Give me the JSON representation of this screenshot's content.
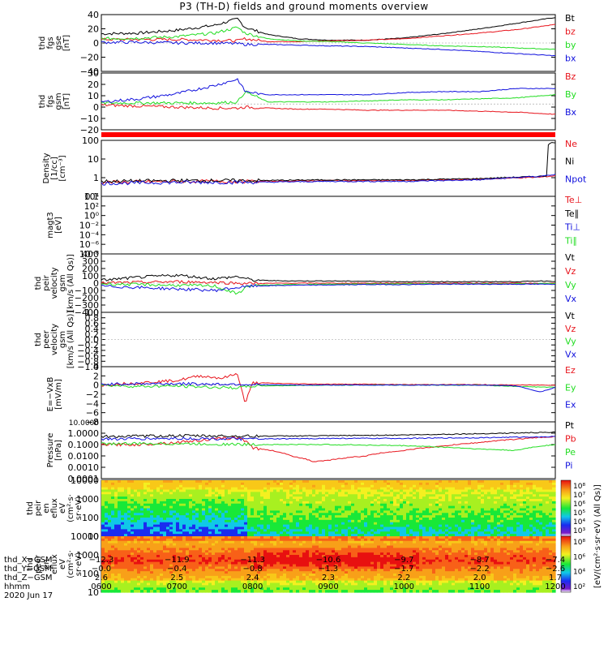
{
  "title": "P3 (TH-D) fields and ground moments overview",
  "colors": {
    "black": "#000000",
    "red": "#e8141c",
    "green": "#22dd22",
    "blue": "#1010dd"
  },
  "chart_data": [
    {
      "type": "line",
      "ylabel": [
        "thd",
        "fgs",
        "gse",
        "[nT]"
      ],
      "ylim": [
        -40,
        40
      ],
      "yticks": [
        "40",
        "20",
        "0",
        "−20",
        "−40"
      ],
      "legend": [
        {
          "label": "Bt",
          "color": "#000000"
        },
        {
          "label": "bz",
          "color": "#e8141c"
        },
        {
          "label": "by",
          "color": "#22dd22"
        },
        {
          "label": "bx",
          "color": "#1010dd"
        }
      ],
      "series": [
        {
          "name": "Bt",
          "color": "#000000",
          "x": [
            6.0,
            6.5,
            7.0,
            7.5,
            7.8,
            7.9,
            8.2,
            8.6,
            9.0,
            9.5,
            10.0,
            10.5,
            11.0,
            11.5,
            12.0
          ],
          "y": [
            13,
            14,
            18,
            25,
            34,
            22,
            12,
            6,
            4,
            4,
            7,
            13,
            20,
            28,
            36
          ]
        },
        {
          "name": "bz",
          "color": "#e8141c",
          "x": [
            6.0,
            6.5,
            7.0,
            7.5,
            7.8,
            7.9,
            8.2,
            8.6,
            9.0,
            9.5,
            10.0,
            10.5,
            11.0,
            11.5,
            12.0
          ],
          "y": [
            5,
            5,
            5,
            4,
            3,
            6,
            2,
            2,
            3,
            4,
            6,
            10,
            14,
            19,
            26
          ]
        },
        {
          "name": "by",
          "color": "#22dd22",
          "x": [
            6.0,
            6.5,
            7.0,
            7.5,
            7.8,
            7.9,
            8.2,
            8.6,
            9.0,
            9.5,
            10.0,
            10.5,
            11.0,
            11.5,
            12.0
          ],
          "y": [
            6,
            7,
            9,
            14,
            22,
            14,
            6,
            3,
            2,
            0,
            -2,
            -4,
            -5,
            -7,
            -9
          ]
        },
        {
          "name": "bx",
          "color": "#1010dd",
          "x": [
            6.0,
            6.5,
            7.0,
            7.5,
            7.8,
            7.9,
            8.2,
            8.6,
            9.0,
            9.5,
            10.0,
            10.5,
            11.0,
            11.5,
            12.0
          ],
          "y": [
            1,
            1,
            0,
            0,
            -1,
            -2,
            -2,
            -3,
            -4,
            -5,
            -7,
            -9,
            -12,
            -15,
            -18
          ]
        }
      ]
    },
    {
      "type": "line",
      "ylabel": [
        "thd",
        "fgs",
        "gsm",
        "[nT]"
      ],
      "ylim": [
        -25,
        30
      ],
      "yticks": [
        "30",
        "20",
        "10",
        "0",
        "−10",
        "−20"
      ],
      "legend": [
        {
          "label": "Bz",
          "color": "#e8141c"
        },
        {
          "label": "By",
          "color": "#22dd22"
        },
        {
          "label": "Bx",
          "color": "#1010dd"
        }
      ],
      "series": [
        {
          "name": "Bz",
          "color": "#e8141c",
          "x": [
            6.0,
            6.5,
            7.0,
            7.5,
            7.8,
            7.9,
            8.2,
            8.6,
            9.0,
            9.5,
            10.0,
            10.5,
            11.0,
            11.5,
            12.0
          ],
          "y": [
            -1,
            -2,
            -3,
            -4,
            -4,
            -3,
            -4,
            -5,
            -5,
            -6,
            -6,
            -6,
            -7,
            -8,
            -10
          ]
        },
        {
          "name": "By",
          "color": "#22dd22",
          "x": [
            6.0,
            6.5,
            7.0,
            7.5,
            7.8,
            7.9,
            8.2,
            8.6,
            9.0,
            9.5,
            10.0,
            10.5,
            11.0,
            11.5,
            12.0
          ],
          "y": [
            1,
            1,
            1,
            1,
            2,
            12,
            2,
            2,
            2,
            3,
            4,
            4,
            5,
            6,
            9
          ]
        },
        {
          "name": "Bx",
          "color": "#1010dd",
          "x": [
            6.0,
            6.5,
            7.0,
            7.5,
            7.8,
            7.9,
            8.2,
            8.6,
            9.0,
            9.5,
            10.0,
            10.5,
            11.0,
            11.5,
            12.0
          ],
          "y": [
            2,
            5,
            10,
            18,
            24,
            12,
            9,
            9,
            9,
            9,
            11,
            12,
            12,
            15,
            15
          ]
        }
      ]
    },
    {
      "type": "line",
      "ylabel": [
        "Density",
        "[1/cc]",
        "[cm⁻³]"
      ],
      "ylog": true,
      "ylim": [
        0.03,
        300
      ],
      "yticks": [
        "100",
        "10",
        "1",
        "0.1"
      ],
      "legend": [
        {
          "label": "Ne",
          "color": "#e8141c"
        },
        {
          "label": "Ni",
          "color": "#000000"
        },
        {
          "label": "Npot",
          "color": "#1010dd"
        }
      ],
      "series": [
        {
          "name": "Ne",
          "color": "#e8141c",
          "x": [
            6.0,
            7.0,
            8.0,
            9.0,
            10.0,
            11.0,
            11.8,
            11.9,
            12.0
          ],
          "y": [
            0.3,
            0.35,
            0.35,
            0.4,
            0.4,
            0.5,
            0.7,
            0.8,
            0.9
          ]
        },
        {
          "name": "Ni",
          "color": "#000000",
          "x": [
            6.0,
            7.0,
            8.0,
            9.0,
            10.0,
            11.0,
            11.8,
            11.9,
            11.91,
            12.0
          ],
          "y": [
            0.35,
            0.4,
            0.4,
            0.45,
            0.45,
            0.55,
            0.8,
            0.9,
            200,
            200
          ]
        },
        {
          "name": "Npot",
          "color": "#1010dd",
          "x": [
            6.0,
            7.0,
            8.0,
            9.0,
            10.0,
            11.0,
            11.8,
            12.0
          ],
          "y": [
            0.25,
            0.3,
            0.3,
            0.35,
            0.35,
            0.45,
            0.8,
            1.1
          ]
        }
      ]
    },
    {
      "type": "line",
      "ylabel": [
        "magt3",
        "[eV]"
      ],
      "ylog": true,
      "yticks": [
        "10⁴",
        "10²",
        "10⁰",
        "10⁻²",
        "10⁻⁴",
        "10⁻⁶",
        "10⁻⁸"
      ],
      "legend": [
        {
          "label": "Te⊥",
          "color": "#e8141c"
        },
        {
          "label": "Te∥",
          "color": "#000000"
        },
        {
          "label": "Ti⊥",
          "color": "#1010dd"
        },
        {
          "label": "Ti∥",
          "color": "#22dd22"
        }
      ],
      "series": []
    },
    {
      "type": "line",
      "ylabel": [
        "thd",
        "peir",
        "velocity",
        "gsm",
        "[km/s (All Qs)]"
      ],
      "ylim": [
        -400,
        400
      ],
      "yticks": [
        "400",
        "300",
        "200",
        "100",
        "0",
        "−100",
        "−200",
        "−300",
        "−400"
      ],
      "legend": [
        {
          "label": "Vt",
          "color": "#000000"
        },
        {
          "label": "Vz",
          "color": "#e8141c"
        },
        {
          "label": "Vy",
          "color": "#22dd22"
        },
        {
          "label": "Vx",
          "color": "#1010dd"
        }
      ],
      "series": [
        {
          "name": "Vt",
          "color": "#000000",
          "x": [
            6.0,
            6.5,
            7.0,
            7.5,
            7.8,
            8.0,
            8.5,
            9.0,
            9.5,
            10.0,
            10.5,
            11.0,
            11.5,
            11.8,
            12.0
          ],
          "y": [
            40,
            80,
            110,
            60,
            90,
            40,
            30,
            30,
            25,
            20,
            20,
            20,
            20,
            30,
            25
          ]
        },
        {
          "name": "Vz",
          "color": "#e8141c",
          "x": [
            6.0,
            6.5,
            7.0,
            7.5,
            7.8,
            8.0,
            8.5,
            9.0,
            9.5,
            10.0,
            10.5,
            11.0,
            11.5,
            11.8,
            12.0
          ],
          "y": [
            0,
            10,
            20,
            10,
            0,
            -5,
            0,
            0,
            0,
            0,
            0,
            0,
            0,
            -5,
            0
          ]
        },
        {
          "name": "Vy",
          "color": "#22dd22",
          "x": [
            6.0,
            6.5,
            7.0,
            7.5,
            7.8,
            7.9,
            8.0,
            8.5,
            9.0,
            9.5,
            10.0,
            10.5,
            11.0,
            11.5,
            12.0
          ],
          "y": [
            -10,
            -20,
            -30,
            -40,
            -150,
            -60,
            -30,
            -20,
            -15,
            -10,
            -10,
            -10,
            -10,
            -10,
            -5
          ]
        },
        {
          "name": "Vx",
          "color": "#1010dd",
          "x": [
            6.0,
            6.5,
            7.0,
            7.5,
            7.8,
            8.0,
            8.5,
            9.0,
            9.5,
            10.0,
            10.5,
            11.0,
            11.5,
            12.0
          ],
          "y": [
            -40,
            -60,
            -80,
            -100,
            -60,
            -40,
            -30,
            -25,
            -20,
            -20,
            -15,
            -15,
            -15,
            -15
          ]
        }
      ]
    },
    {
      "type": "line",
      "ylabel": [
        "thd",
        "peer",
        "velocity",
        "gsm",
        "[km/s (All Qs)]"
      ],
      "ylim": [
        -1,
        1
      ],
      "yticks": [
        "1.0",
        "0.8",
        "0.6",
        "0.4",
        "0.2",
        "0.0",
        "−0.2",
        "−0.4",
        "−0.6",
        "−0.8",
        "−1.0"
      ],
      "legend": [
        {
          "label": "Vt",
          "color": "#000000"
        },
        {
          "label": "Vz",
          "color": "#e8141c"
        },
        {
          "label": "Vy",
          "color": "#22dd22"
        },
        {
          "label": "Vx",
          "color": "#1010dd"
        }
      ],
      "series": []
    },
    {
      "type": "line",
      "ylabel": [
        "E=−VxB",
        "[mV/m]"
      ],
      "ylim": [
        -8,
        4
      ],
      "yticks": [
        "4",
        "2",
        "0",
        "−2",
        "−4",
        "−6",
        "−8"
      ],
      "legend": [
        {
          "label": "Ez",
          "color": "#e8141c"
        },
        {
          "label": "Ey",
          "color": "#22dd22"
        },
        {
          "label": "Ex",
          "color": "#1010dd"
        }
      ],
      "series": [
        {
          "name": "Ez",
          "color": "#e8141c",
          "x": [
            6.0,
            6.5,
            7.0,
            7.3,
            7.6,
            7.8,
            7.9,
            8.0,
            8.5,
            9.0,
            9.5,
            10.0,
            10.5,
            11.0,
            11.5,
            12.0
          ],
          "y": [
            0,
            0.5,
            1,
            2,
            1.5,
            2.5,
            -4,
            0.5,
            0.3,
            0.2,
            0.2,
            0.1,
            0.1,
            0.1,
            0,
            0
          ]
        },
        {
          "name": "Ey",
          "color": "#22dd22",
          "x": [
            6.0,
            6.5,
            7.0,
            7.5,
            7.8,
            8.0,
            8.5,
            9.0,
            9.5,
            10.0,
            10.5,
            11.0,
            11.5,
            12.0
          ],
          "y": [
            0,
            -0.3,
            -0.2,
            -0.5,
            -0.6,
            -0.2,
            -0.1,
            0,
            0,
            0,
            0,
            0,
            -0.3,
            -0.5
          ]
        },
        {
          "name": "Ex",
          "color": "#1010dd",
          "x": [
            6.0,
            6.5,
            7.0,
            7.5,
            7.8,
            8.0,
            8.5,
            9.0,
            9.5,
            10.0,
            10.5,
            11.0,
            11.5,
            11.8,
            12.0
          ],
          "y": [
            0.2,
            0.3,
            0.3,
            0.2,
            0.2,
            0.1,
            0,
            0,
            0,
            0,
            0,
            0,
            -0.2,
            -1.5,
            -0.5
          ]
        }
      ]
    },
    {
      "type": "line",
      "ylabel": [
        "Pressure",
        "[nPa]"
      ],
      "ylog": true,
      "ylim": [
        0.0001,
        10
      ],
      "yticks": [
        "10.0000",
        "1.0000",
        "0.1000",
        "0.0100",
        "0.0010",
        "0.0001"
      ],
      "legend": [
        {
          "label": "Pt",
          "color": "#000000"
        },
        {
          "label": "Pb",
          "color": "#e8141c"
        },
        {
          "label": "Pe",
          "color": "#22dd22"
        },
        {
          "label": "Pi",
          "color": "#1010dd"
        }
      ],
      "series": [
        {
          "name": "Pt",
          "color": "#000000",
          "x": [
            6.0,
            7.0,
            8.0,
            9.0,
            10.0,
            11.0,
            12.0
          ],
          "y": [
            0.5,
            0.6,
            0.55,
            0.6,
            0.7,
            0.9,
            1.2
          ]
        },
        {
          "name": "Pb",
          "color": "#e8141c",
          "x": [
            6.0,
            6.5,
            7.0,
            7.5,
            7.8,
            8.0,
            8.5,
            8.8,
            9.0,
            9.5,
            10.0,
            10.5,
            11.0,
            11.5,
            12.0
          ],
          "y": [
            0.1,
            0.1,
            0.15,
            0.3,
            0.4,
            0.05,
            0.01,
            0.003,
            0.004,
            0.01,
            0.03,
            0.07,
            0.15,
            0.3,
            0.5
          ]
        },
        {
          "name": "Pe",
          "color": "#22dd22",
          "x": [
            6.0,
            7.0,
            8.0,
            9.0,
            10.0,
            11.0,
            11.5,
            12.0
          ],
          "y": [
            0.12,
            0.12,
            0.1,
            0.1,
            0.08,
            0.04,
            0.03,
            0.1
          ]
        },
        {
          "name": "Pi",
          "color": "#1010dd",
          "x": [
            6.0,
            7.0,
            8.0,
            9.0,
            10.0,
            11.0,
            12.0
          ],
          "y": [
            0.3,
            0.35,
            0.3,
            0.35,
            0.35,
            0.4,
            0.5
          ]
        }
      ]
    },
    {
      "type": "heatmap",
      "ylabel": [
        "thd",
        "peir",
        "en",
        "eflux",
        "eV",
        "(cm²·s·",
        "sr·eV)"
      ],
      "ylog": true,
      "ylim": [
        7,
        20000
      ],
      "yticks": [
        "10000",
        "1000",
        "100",
        "10"
      ],
      "colorbar_ticks": [
        "10⁸",
        "10⁷",
        "10⁶",
        "10⁵",
        "10⁴",
        "10³"
      ]
    },
    {
      "type": "heatmap",
      "ylabel": [
        "thd",
        "peer",
        "en",
        "eflux",
        "eV",
        "(cm²·s·",
        "sr·eV)"
      ],
      "ylog": true,
      "ylim": [
        7,
        20000
      ],
      "yticks": [
        "10000",
        "1000",
        "100",
        "10"
      ],
      "colorbar_ticks": [
        "10⁸",
        "10⁶",
        "10⁴",
        "10²"
      ]
    }
  ],
  "x_axis": {
    "ticks": [
      "0600",
      "0700",
      "0800",
      "0900",
      "1000",
      "1100",
      "1200"
    ],
    "xlim": [
      6.0,
      12.0
    ]
  },
  "colorbar_label": "[eV/(cm²·s·sr·eV) (All Qs)]",
  "footer": {
    "rows": [
      {
        "label": "thd_X−GSM",
        "values": [
          "−12.3",
          "−11.9",
          "−11.3",
          "−10.6",
          "−9.7",
          "−8.7",
          "−7.4"
        ]
      },
      {
        "label": "thd_Y−GSM",
        "values": [
          "−0.0",
          "−0.4",
          "−0.8",
          "−1.3",
          "−1.7",
          "−2.2",
          "−2.6"
        ]
      },
      {
        "label": "thd_Z−GSM",
        "values": [
          "2.6",
          "2.5",
          "2.4",
          "2.3",
          "2.2",
          "2.0",
          "1.7"
        ]
      },
      {
        "label": "hhmm",
        "values": [
          "0600",
          "0700",
          "0800",
          "0900",
          "1000",
          "1100",
          "1200"
        ]
      }
    ],
    "date": "2020 Jun 17"
  }
}
